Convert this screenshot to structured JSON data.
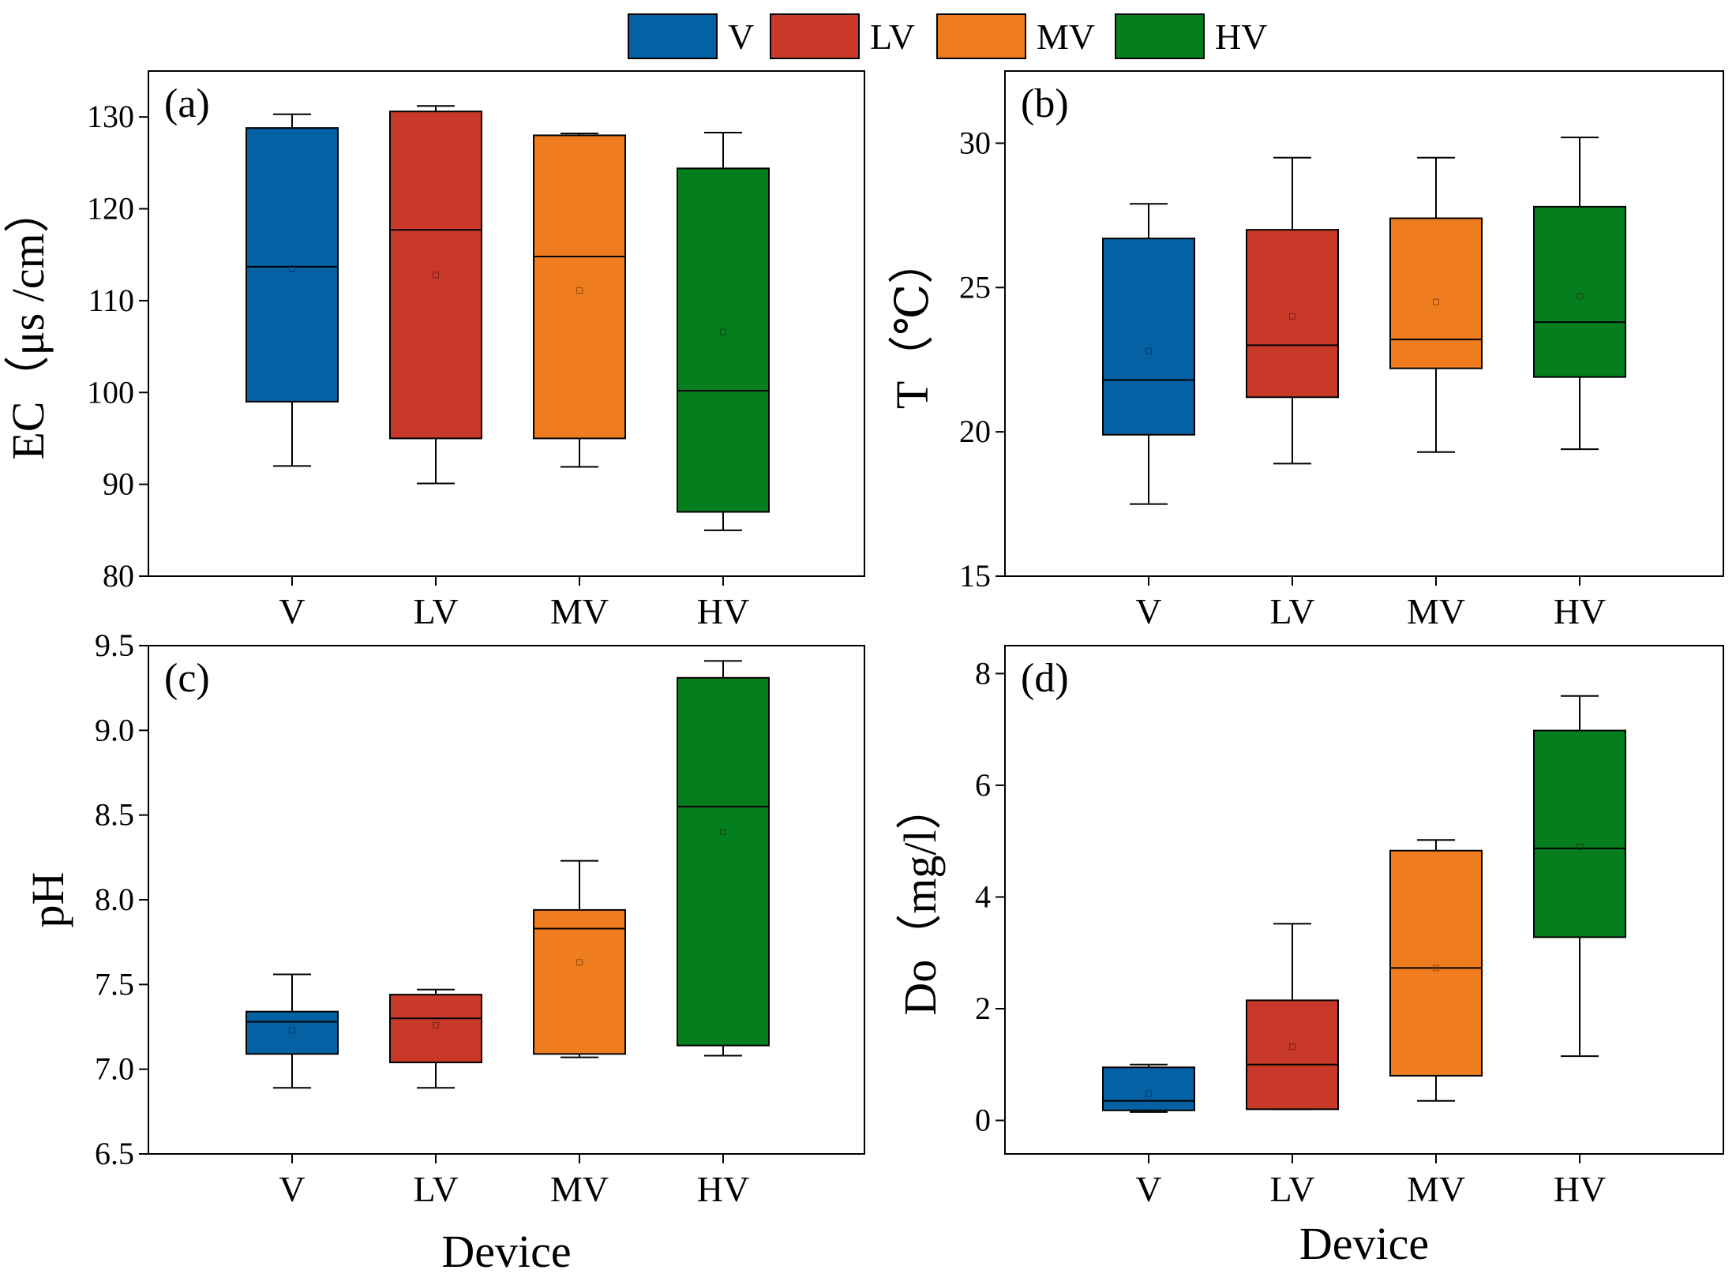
{
  "colors": {
    "V": "#0461a3",
    "LV": "#c8392a",
    "MV": "#ef7d1f",
    "HV": "#057e1d",
    "axis": "#000000",
    "background": "#ffffff"
  },
  "legend": {
    "items": [
      {
        "key": "V",
        "label": "V"
      },
      {
        "key": "LV",
        "label": "LV"
      },
      {
        "key": "MV",
        "label": "MV"
      },
      {
        "key": "HV",
        "label": "HV"
      }
    ]
  },
  "chart_data": [
    {
      "type": "box",
      "panel": "(a)",
      "title": "",
      "xlabel": "",
      "ylabel": "EC（μs /cm）",
      "ylim": [
        80,
        135
      ],
      "yticks": [
        80,
        90,
        100,
        110,
        120,
        130
      ],
      "ytick_labels": [
        "80",
        "90",
        "100",
        "110",
        "120",
        "130"
      ],
      "categories": [
        "V",
        "LV",
        "MV",
        "HV"
      ],
      "series": [
        {
          "name": "V",
          "min": 92.0,
          "q1": 99.0,
          "median": 113.7,
          "q3": 128.8,
          "max": 130.3,
          "mean": 113.5
        },
        {
          "name": "LV",
          "min": 90.1,
          "q1": 95.0,
          "median": 117.7,
          "q3": 130.6,
          "max": 131.2,
          "mean": 112.8
        },
        {
          "name": "MV",
          "min": 91.9,
          "q1": 95.0,
          "median": 114.8,
          "q3": 128.0,
          "max": 128.2,
          "mean": 111.1
        },
        {
          "name": "HV",
          "min": 85.0,
          "q1": 87.0,
          "median": 100.2,
          "q3": 124.4,
          "max": 128.3,
          "mean": 106.6
        }
      ]
    },
    {
      "type": "box",
      "panel": "(b)",
      "title": "",
      "xlabel": "",
      "ylabel": "T（℃）",
      "ylim": [
        15,
        32.5
      ],
      "yticks": [
        15,
        20,
        25,
        30
      ],
      "ytick_labels": [
        "15",
        "20",
        "25",
        "30"
      ],
      "categories": [
        "V",
        "LV",
        "MV",
        "HV"
      ],
      "series": [
        {
          "name": "V",
          "min": 17.5,
          "q1": 19.9,
          "median": 21.8,
          "q3": 26.7,
          "max": 27.9,
          "mean": 22.8
        },
        {
          "name": "LV",
          "min": 18.9,
          "q1": 21.2,
          "median": 23.0,
          "q3": 27.0,
          "max": 29.5,
          "mean": 24.0
        },
        {
          "name": "MV",
          "min": 19.3,
          "q1": 22.2,
          "median": 23.2,
          "q3": 27.4,
          "max": 29.5,
          "mean": 24.5
        },
        {
          "name": "HV",
          "min": 19.4,
          "q1": 21.9,
          "median": 23.8,
          "q3": 27.8,
          "max": 30.2,
          "mean": 24.7
        }
      ]
    },
    {
      "type": "box",
      "panel": "(c)",
      "title": "",
      "xlabel": "Device",
      "ylabel": "pH",
      "ylim": [
        6.5,
        9.5
      ],
      "yticks": [
        6.5,
        7.0,
        7.5,
        8.0,
        8.5,
        9.0,
        9.5
      ],
      "ytick_labels": [
        "6.5",
        "7.0",
        "7.5",
        "8.0",
        "8.5",
        "9.0",
        "9.5"
      ],
      "categories": [
        "V",
        "LV",
        "MV",
        "HV"
      ],
      "series": [
        {
          "name": "V",
          "min": 6.89,
          "q1": 7.09,
          "median": 7.28,
          "q3": 7.34,
          "max": 7.56,
          "mean": 7.23
        },
        {
          "name": "LV",
          "min": 6.89,
          "q1": 7.04,
          "median": 7.3,
          "q3": 7.44,
          "max": 7.47,
          "mean": 7.26
        },
        {
          "name": "MV",
          "min": 7.07,
          "q1": 7.09,
          "median": 7.83,
          "q3": 7.94,
          "max": 8.23,
          "mean": 7.63
        },
        {
          "name": "HV",
          "min": 7.08,
          "q1": 7.14,
          "median": 8.55,
          "q3": 9.31,
          "max": 9.41,
          "mean": 8.4
        }
      ]
    },
    {
      "type": "box",
      "panel": "(d)",
      "title": "",
      "xlabel": "Device",
      "ylabel": "Do（mg/l）",
      "ylim": [
        -0.6,
        8.5
      ],
      "yticks": [
        0,
        2,
        4,
        6,
        8
      ],
      "ytick_labels": [
        "0",
        "2",
        "4",
        "6",
        "8"
      ],
      "categories": [
        "V",
        "LV",
        "MV",
        "HV"
      ],
      "series": [
        {
          "name": "V",
          "min": 0.15,
          "q1": 0.18,
          "median": 0.35,
          "q3": 0.95,
          "max": 1.0,
          "mean": 0.48
        },
        {
          "name": "LV",
          "min": 0.2,
          "q1": 0.2,
          "median": 1.0,
          "q3": 2.15,
          "max": 3.52,
          "mean": 1.32
        },
        {
          "name": "MV",
          "min": 0.35,
          "q1": 0.8,
          "median": 2.73,
          "q3": 4.83,
          "max": 5.02,
          "mean": 2.73
        },
        {
          "name": "HV",
          "min": 1.15,
          "q1": 3.28,
          "median": 4.87,
          "q3": 6.98,
          "max": 7.6,
          "mean": 4.9
        }
      ]
    }
  ]
}
